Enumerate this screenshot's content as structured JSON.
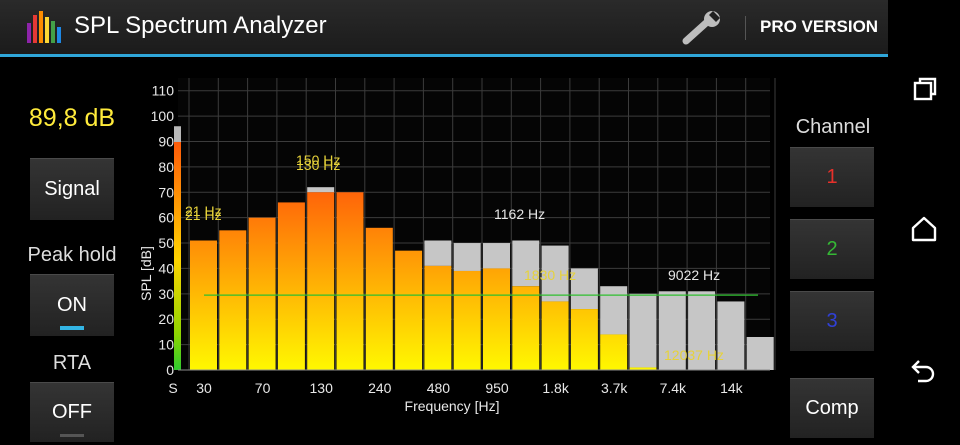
{
  "app": {
    "title": "SPL Spectrum Analyzer",
    "pro_label": "PRO VERSION"
  },
  "left_panel": {
    "level_readout": "89,8 dB",
    "signal_button": "Signal",
    "peak_hold_label": "Peak hold",
    "peak_hold_button": "ON",
    "rta_label": "RTA",
    "rta_button": "OFF"
  },
  "right_panel": {
    "channel_label": "Channel",
    "channels": [
      {
        "label": "1",
        "color": "#e8302a"
      },
      {
        "label": "2",
        "color": "#35b835"
      },
      {
        "label": "3",
        "color": "#3040d8"
      }
    ],
    "comp_button": "Comp"
  },
  "chart_data": {
    "type": "bar",
    "xlabel": "Frequency [Hz]",
    "ylabel": "SPL [dB]",
    "ylim": [
      0,
      115
    ],
    "y_ticks": [
      "0",
      "10",
      "20",
      "30",
      "40",
      "50",
      "60",
      "70",
      "80",
      "90",
      "100",
      "110"
    ],
    "x_ticks": [
      "S",
      "30",
      "70",
      "130",
      "240",
      "480",
      "950",
      "1.8k",
      "3.7k",
      "7.4k",
      "14k"
    ],
    "grid": true,
    "overall_level": {
      "label": "S",
      "value": 89.8,
      "peak": 96
    },
    "series": [
      {
        "name": "Channel 1",
        "values": [
          51,
          55,
          60,
          66,
          70,
          70,
          56,
          47,
          41,
          39,
          40,
          33,
          27,
          24,
          14,
          1,
          0,
          0,
          0,
          0
        ]
      },
      {
        "name": "Peak hold",
        "values": [
          51,
          55,
          60,
          66,
          72,
          70,
          56,
          47,
          51,
          50,
          50,
          51,
          49,
          40,
          33,
          30,
          31,
          31,
          27,
          13
        ]
      }
    ],
    "reference_line": 29.5,
    "annotations": [
      "150 Hz",
      "130 Hz",
      "21 Hz",
      "21 Hz",
      "1162 Hz",
      "1830 Hz",
      "9022 Hz",
      "12037 Hz"
    ],
    "colors": {
      "gradient_top": "#ff5a0a",
      "gradient_bottom": "#fff800",
      "peak": "#c6c6c6",
      "grid": "#3c3c3c",
      "reference_line": "#2fbf2f",
      "peak_label": "#e6d23a",
      "marker_label": "#e6e6e6"
    }
  },
  "nav": {
    "icons": [
      "recent-apps-icon",
      "home-icon",
      "back-icon"
    ]
  }
}
